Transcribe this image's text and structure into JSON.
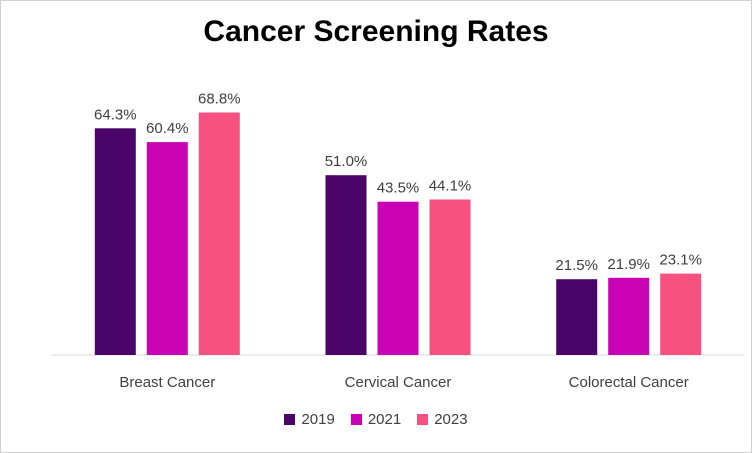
{
  "chart_data": {
    "type": "bar",
    "title": "Cancer Screening Rates",
    "categories": [
      "Breast Cancer",
      "Cervical Cancer",
      "Colorectal Cancer"
    ],
    "series": [
      {
        "name": "2019",
        "color": "#4b0569",
        "values": [
          64.3,
          51.0,
          21.5
        ],
        "labels": [
          "64.3%",
          "51.0%",
          "21.5%"
        ]
      },
      {
        "name": "2021",
        "color": "#c902b4",
        "values": [
          60.4,
          43.5,
          21.9
        ],
        "labels": [
          "60.4%",
          "43.5%",
          "21.9%"
        ]
      },
      {
        "name": "2023",
        "color": "#f7517f",
        "values": [
          68.8,
          44.1,
          23.1
        ],
        "labels": [
          "68.8%",
          "44.1%",
          "23.1%"
        ]
      }
    ],
    "ylim": [
      0,
      80
    ],
    "grid": false,
    "legend_position": "bottom"
  }
}
